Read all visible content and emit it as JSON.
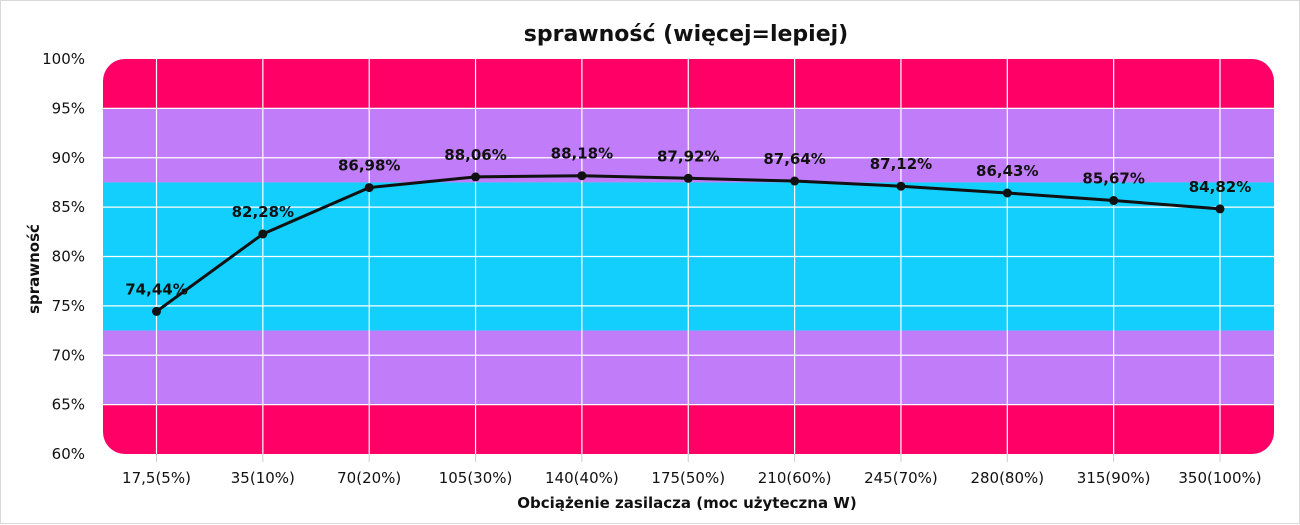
{
  "chart_data": {
    "type": "line",
    "title": "sprawność (więcej=lepiej)",
    "xlabel": "Obciążenie zasilacza (moc użyteczna W)",
    "ylabel": "sprawność",
    "categories": [
      "17,5(5%)",
      "35(10%)",
      "70(20%)",
      "105(30%)",
      "140(40%)",
      "175(50%)",
      "210(60%)",
      "245(70%)",
      "280(80%)",
      "315(90%)",
      "350(100%)"
    ],
    "series": [
      {
        "values": [
          74.44,
          82.28,
          86.98,
          88.06,
          88.18,
          87.92,
          87.64,
          87.12,
          86.43,
          85.67,
          84.82
        ],
        "labels": [
          "74,44%",
          "82,28%",
          "86,98%",
          "88,06%",
          "88,18%",
          "87,92%",
          "87,64%",
          "87,12%",
          "86,43%",
          "85,67%",
          "84,82%"
        ],
        "color": "#111111"
      }
    ],
    "ylim": [
      60,
      100
    ],
    "yticks": [
      60,
      65,
      70,
      75,
      80,
      85,
      90,
      95,
      100
    ],
    "ytick_labels": [
      "60%",
      "65%",
      "70%",
      "75%",
      "80%",
      "85%",
      "90%",
      "95%",
      "100%"
    ],
    "grid": true,
    "bands": [
      {
        "from": 95,
        "to": 100,
        "color": "#ff0066"
      },
      {
        "from": 87.5,
        "to": 95,
        "color": "#c17cfa"
      },
      {
        "from": 72.5,
        "to": 87.5,
        "color": "#12cffd"
      },
      {
        "from": 65,
        "to": 72.5,
        "color": "#c17cfa"
      },
      {
        "from": 60,
        "to": 65,
        "color": "#ff0066"
      }
    ]
  }
}
